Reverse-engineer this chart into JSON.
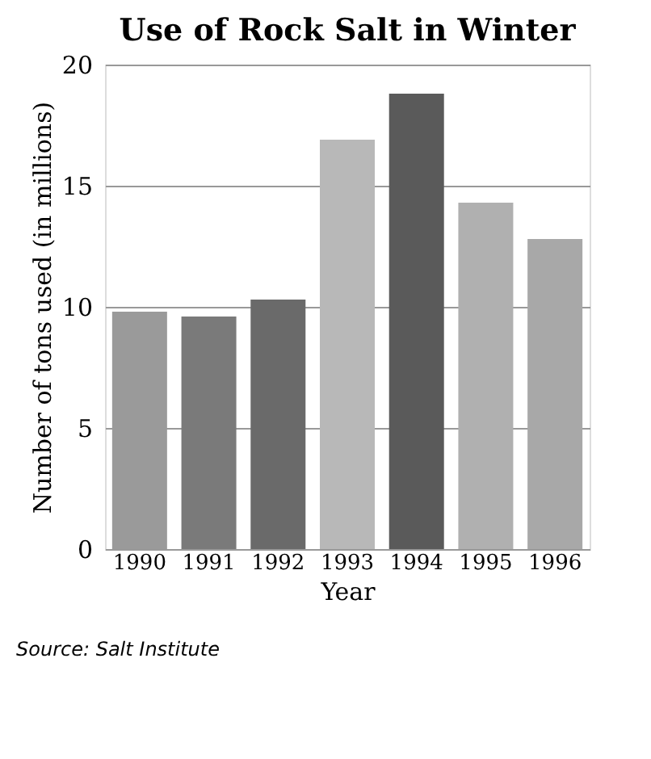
{
  "chart_data": {
    "type": "bar",
    "title": "Use of Rock Salt in Winter",
    "xlabel": "Year",
    "ylabel": "Number of tons used (in millions)",
    "categories": [
      "1990",
      "1991",
      "1992",
      "1993",
      "1994",
      "1995",
      "1996"
    ],
    "values": [
      9.8,
      9.6,
      10.3,
      16.9,
      18.8,
      14.3,
      12.8
    ],
    "colors": [
      "#9a9a9a",
      "#7a7a7a",
      "#6a6a6a",
      "#b8b8b8",
      "#5a5a5a",
      "#b0b0b0",
      "#a8a8a8"
    ],
    "ylim": [
      0,
      20
    ],
    "yticks": [
      0,
      5,
      10,
      15,
      20
    ],
    "grid": "y",
    "annotations": [
      "Source: Salt Institute"
    ]
  }
}
